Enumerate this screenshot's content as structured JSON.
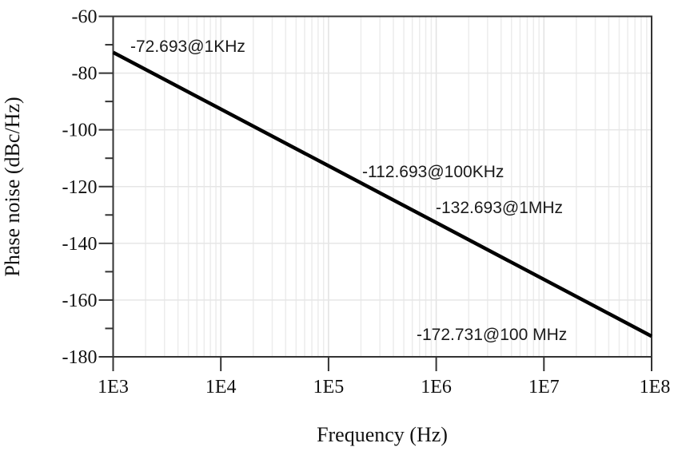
{
  "chart_data": {
    "type": "line",
    "title": "",
    "xlabel": "Frequency (Hz)",
    "ylabel": "Phase noise (dBc/Hz)",
    "xscale": "log",
    "xlim": [
      1000,
      100000000
    ],
    "ylim": [
      -180,
      -60
    ],
    "xticks": [
      1000,
      10000,
      100000,
      1000000,
      10000000,
      100000000
    ],
    "xtick_labels": [
      "1E3",
      "1E4",
      "1E5",
      "1E6",
      "1E7",
      "1E8"
    ],
    "yticks": [
      -60,
      -80,
      -100,
      -120,
      -140,
      -160,
      -180
    ],
    "ytick_labels": [
      "-60",
      "-80",
      "-100",
      "-120",
      "-140",
      "-160",
      "-180"
    ],
    "grid": true,
    "legend": null,
    "series": [
      {
        "name": "Phase noise",
        "color": "#000000",
        "x": [
          1000,
          100000,
          1000000,
          100000000
        ],
        "y": [
          -72.693,
          -112.693,
          -132.693,
          -172.731
        ]
      }
    ],
    "annotations": [
      {
        "text": "-72.693@1KHz",
        "x": 1000,
        "y": -72.693
      },
      {
        "text": "-112.693@100KHz",
        "x": 100000,
        "y": -112.693
      },
      {
        "text": "-132.693@1MHz",
        "x": 1000000,
        "y": -132.693
      },
      {
        "text": "-172.731@100 MHz",
        "x": 100000000,
        "y": -172.731
      }
    ]
  }
}
